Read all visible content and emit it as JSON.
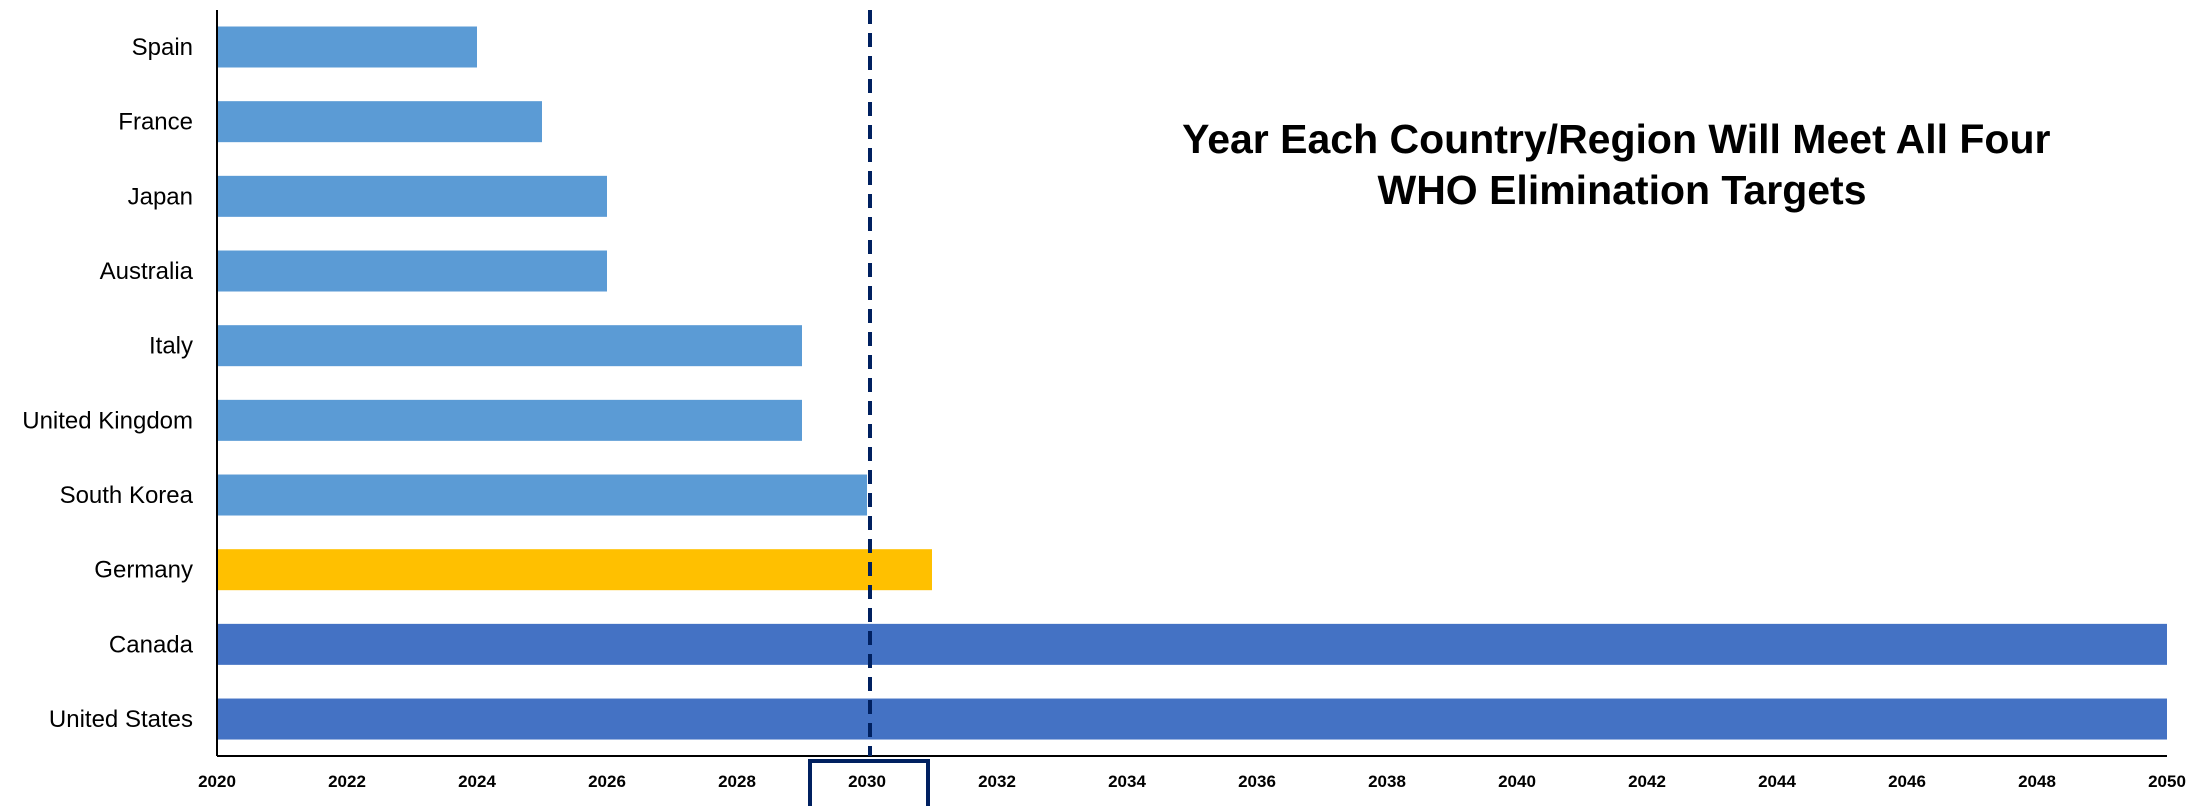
{
  "chart_data": {
    "type": "bar",
    "orientation": "horizontal",
    "title_lines": [
      "Year Each Country/Region Will Meet All Four",
      "WHO Elimination Targets"
    ],
    "categories": [
      "Spain",
      "France",
      "Japan",
      "Australia",
      "Italy",
      "United Kingdom",
      "South Korea",
      "Germany",
      "Canada",
      "United States"
    ],
    "values": [
      2024,
      2025,
      2026,
      2026,
      2029,
      2029,
      2030,
      2031,
      2050,
      2050
    ],
    "bar_colors": [
      "#5b9bd5",
      "#5b9bd5",
      "#5b9bd5",
      "#5b9bd5",
      "#5b9bd5",
      "#5b9bd5",
      "#5b9bd5",
      "#ffc000",
      "#4472c4",
      "#4472c4"
    ],
    "xlim": [
      2020,
      2050
    ],
    "x_ticks": [
      "2020",
      "2022",
      "2024",
      "2026",
      "2028",
      "2030",
      "2032",
      "2034",
      "2036",
      "2038",
      "2040",
      "2042",
      "2044",
      "2046",
      "2048",
      "2050"
    ],
    "reference_line": {
      "value": 2030,
      "style": "dashed",
      "color": "#002060"
    },
    "highlight_tick": {
      "value": "2030",
      "color": "#002060"
    },
    "grid": false,
    "legend": false
  }
}
